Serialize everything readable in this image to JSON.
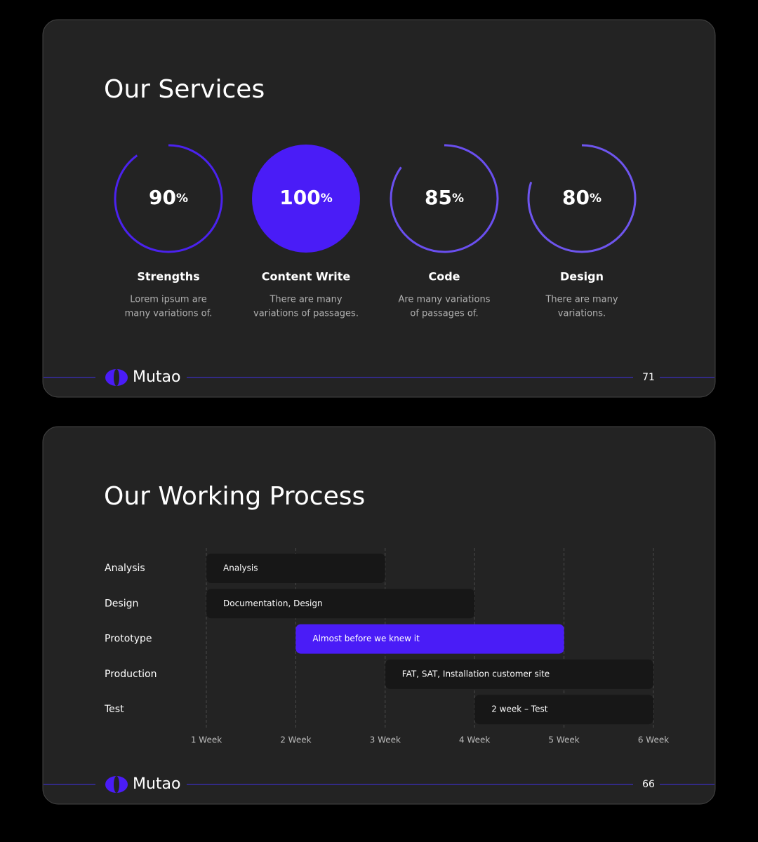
{
  "slides": [
    {
      "title": "Our Services",
      "services": [
        {
          "percent": 90,
          "unit": "%",
          "name": "Strengths",
          "description": [
            "Lorem ipsum are",
            "many variations of."
          ],
          "color": "#4b22ee"
        },
        {
          "percent": 100,
          "unit": "%",
          "name": "Content Write",
          "description": [
            "There are many",
            "variations of passages."
          ],
          "color": "#4a1cf7"
        },
        {
          "percent": 85,
          "unit": "%",
          "name": "Code",
          "description": [
            "Are many variations",
            "of passages of."
          ],
          "color": "#6a4ff0"
        },
        {
          "percent": 80,
          "unit": "%",
          "name": "Design",
          "description": [
            "There are many",
            "variations."
          ],
          "color": "#6e55ee"
        }
      ],
      "brand": "Mutao",
      "page": 71
    },
    {
      "title": "Our Working Process",
      "chart": {
        "type": "gantt",
        "rows": [
          "Analysis",
          "Design",
          "Prototype",
          "Production",
          "Test"
        ],
        "tasks": [
          {
            "label": "Analysis",
            "start": 1,
            "end": 3,
            "color": "#171717"
          },
          {
            "label": "Documentation, Design",
            "start": 1,
            "end": 4,
            "color": "#171717"
          },
          {
            "label": "Almost before we knew it",
            "start": 2,
            "end": 5,
            "color": "#4a1cf7"
          },
          {
            "label": "FAT, SAT, Installation customer site",
            "start": 3,
            "end": 6,
            "color": "#171717"
          },
          {
            "label": "2 week – Test",
            "start": 4,
            "end": 6,
            "color": "#171717"
          }
        ],
        "xlim": [
          1,
          6
        ],
        "xticks": [
          {
            "value": 1,
            "label": "1 Week"
          },
          {
            "value": 2,
            "label": "2 Week"
          },
          {
            "value": 3,
            "label": "3 Week"
          },
          {
            "value": 4,
            "label": "4 Week"
          },
          {
            "value": 5,
            "label": "5 Week"
          },
          {
            "value": 6,
            "label": "6 Week"
          }
        ]
      },
      "brand": "Mutao",
      "page": 66
    }
  ]
}
